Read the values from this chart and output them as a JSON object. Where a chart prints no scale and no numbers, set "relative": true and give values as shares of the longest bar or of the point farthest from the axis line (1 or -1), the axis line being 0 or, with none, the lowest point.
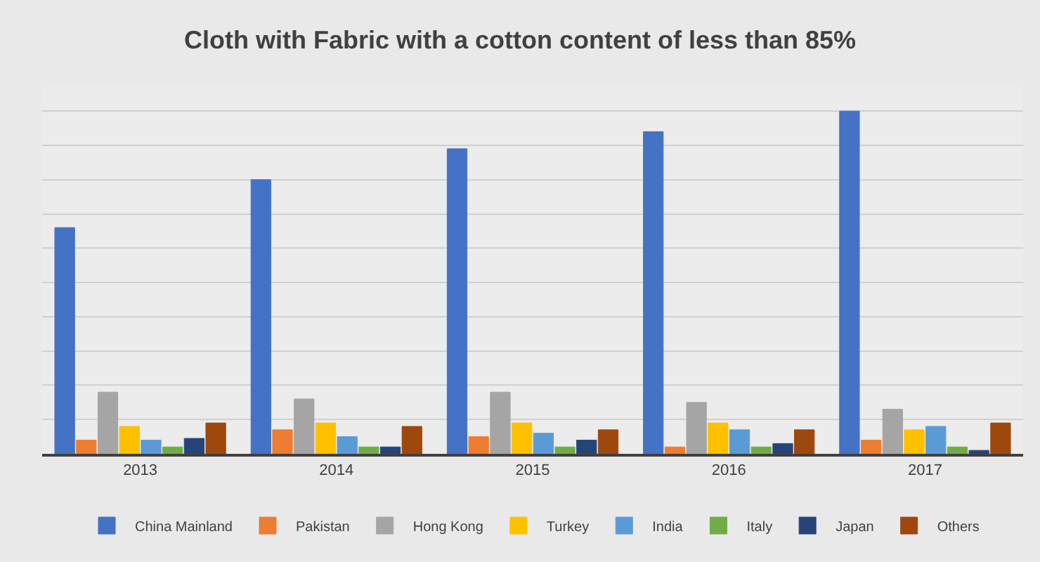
{
  "chart_data": {
    "type": "bar",
    "title": "Cloth with Fabric with a cotton content of less than 85%",
    "categories": [
      "2013",
      "2014",
      "2015",
      "2016",
      "2017"
    ],
    "relative": true,
    "grid": "y",
    "legend": "bottom",
    "series": [
      {
        "name": "China Mainland",
        "color": "#4472c4",
        "values": [
          0.66,
          0.8,
          0.89,
          0.94,
          1
        ]
      },
      {
        "name": "Pakistan",
        "color": "#ed7d31",
        "values": [
          0.04,
          0.07,
          0.05,
          0.02,
          0.04
        ]
      },
      {
        "name": "Hong Kong",
        "color": "#a5a5a5",
        "values": [
          0.18,
          0.16,
          0.18,
          0.15,
          0.13
        ]
      },
      {
        "name": "Turkey",
        "color": "#ffc000",
        "values": [
          0.08,
          0.09,
          0.09,
          0.09,
          0.07
        ]
      },
      {
        "name": "India",
        "color": "#5b9bd5",
        "values": [
          0.04,
          0.05,
          0.06,
          0.07,
          0.08
        ]
      },
      {
        "name": "Italy",
        "color": "#70ad47",
        "values": [
          0.02,
          0.02,
          0.02,
          0.02,
          0.02
        ]
      },
      {
        "name": "Japan",
        "color": "#264478",
        "values": [
          0.045,
          0.02,
          0.04,
          0.03,
          0.01
        ]
      },
      {
        "name": "Others",
        "color": "#9e480e",
        "values": [
          0.09,
          0.08,
          0.07,
          0.07,
          0.09
        ]
      }
    ]
  }
}
